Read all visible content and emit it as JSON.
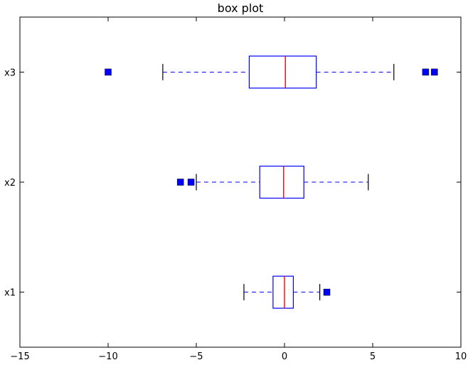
{
  "chart_data": {
    "type": "boxplot",
    "orientation": "horizontal",
    "title": "box plot",
    "xlabel": "",
    "ylabel": "",
    "xlim": [
      -15,
      10
    ],
    "x_ticks": [
      -15,
      -10,
      -5,
      0,
      5,
      10
    ],
    "x_tick_labels": [
      "−15",
      "−10",
      "−5",
      "0",
      "5",
      "10"
    ],
    "grid": false,
    "colors": {
      "box": "#0000ff",
      "median": "#ff0000",
      "whisker": "#0000ff",
      "cap": "#000000",
      "flier": "#0000ff"
    },
    "series": [
      {
        "name": "x1",
        "whisker_low": -2.3,
        "q1": -0.65,
        "median": 0.0,
        "q3": 0.5,
        "whisker_high": 2.0,
        "outliers": [
          2.4
        ]
      },
      {
        "name": "x2",
        "whisker_low": -5.0,
        "q1": -1.4,
        "median": -0.05,
        "q3": 1.1,
        "whisker_high": 4.75,
        "outliers": [
          -5.9,
          -5.3
        ]
      },
      {
        "name": "x3",
        "whisker_low": -6.9,
        "q1": -2.0,
        "median": 0.05,
        "q3": 1.8,
        "whisker_high": 6.2,
        "outliers": [
          -10.0,
          8.0,
          8.5
        ]
      }
    ]
  }
}
